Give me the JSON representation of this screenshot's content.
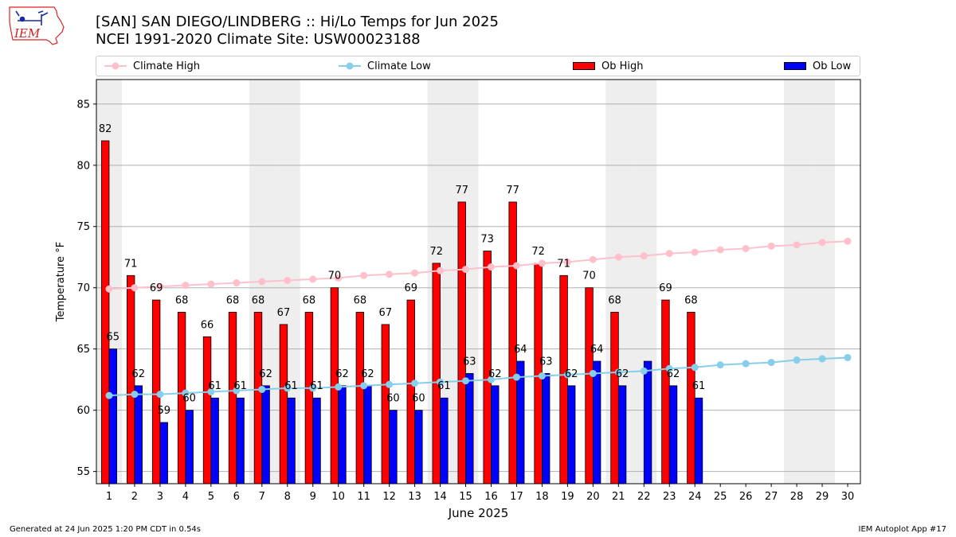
{
  "header": {
    "title_line1": "[SAN] SAN DIEGO/LINDBERG :: Hi/Lo Temps for Jun 2025",
    "title_line2": "NCEI 1991-2020 Climate Site: USW00023188",
    "logo_text": "IEM"
  },
  "legend": {
    "climate_high": "Climate High",
    "climate_low": "Climate Low",
    "ob_high": "Ob High",
    "ob_low": "Ob Low"
  },
  "footer": {
    "generated": "Generated at 24 Jun 2025 1:20 PM CDT in 0.54s",
    "app": "IEM Autoplot App #17"
  },
  "colors": {
    "ob_high": "#ff0000",
    "ob_low": "#0000ff",
    "climate_high": "#ffc0cb",
    "climate_low": "#87ceeb",
    "weekend_shade": "#eeeeee",
    "grid": "#b0b0b0"
  },
  "chart_data": {
    "type": "bar",
    "title": "[SAN] SAN DIEGO/LINDBERG :: Hi/Lo Temps for Jun 2025",
    "xlabel": "June 2025",
    "ylabel": "Temperature °F",
    "ylim": [
      54,
      87
    ],
    "xlim": [
      0.5,
      30.5
    ],
    "yticks": [
      55,
      60,
      65,
      70,
      75,
      80,
      85
    ],
    "y_grid": true,
    "legend_position": "top",
    "shaded_days": [
      1,
      7,
      8,
      14,
      15,
      21,
      22,
      28,
      29
    ],
    "categories": [
      1,
      2,
      3,
      4,
      5,
      6,
      7,
      8,
      9,
      10,
      11,
      12,
      13,
      14,
      15,
      16,
      17,
      18,
      19,
      20,
      21,
      22,
      23,
      24,
      25,
      26,
      27,
      28,
      29,
      30
    ],
    "series": [
      {
        "name": "Ob High",
        "type": "bar",
        "values": [
          82,
          71,
          69,
          68,
          66,
          68,
          68,
          67,
          68,
          70,
          68,
          67,
          69,
          72,
          77,
          73,
          77,
          72,
          71,
          70,
          68,
          null,
          69,
          68,
          null,
          null,
          null,
          null,
          null,
          null
        ],
        "labels": [
          82,
          71,
          69,
          68,
          66,
          68,
          68,
          67,
          68,
          70,
          68,
          67,
          69,
          72,
          77,
          73,
          77,
          72,
          71,
          70,
          68,
          null,
          69,
          68,
          null,
          null,
          null,
          null,
          null,
          null
        ]
      },
      {
        "name": "Ob Low",
        "type": "bar",
        "values": [
          65,
          62,
          59,
          60,
          61,
          61,
          62,
          61,
          61,
          62,
          62,
          60,
          60,
          61,
          63,
          62,
          64,
          63,
          62,
          64,
          62,
          64,
          62,
          61,
          null,
          null,
          null,
          null,
          null,
          null
        ],
        "labels": [
          65,
          62,
          59,
          60,
          61,
          61,
          62,
          61,
          61,
          62,
          62,
          60,
          60,
          61,
          63,
          62,
          64,
          63,
          62,
          64,
          62,
          null,
          62,
          61,
          null,
          null,
          null,
          null,
          null,
          null
        ]
      },
      {
        "name": "Climate High",
        "type": "line",
        "values": [
          69.9,
          70.0,
          70.1,
          70.2,
          70.3,
          70.4,
          70.5,
          70.6,
          70.7,
          70.8,
          71.0,
          71.1,
          71.2,
          71.4,
          71.5,
          71.7,
          71.8,
          72.0,
          72.1,
          72.3,
          72.5,
          72.6,
          72.8,
          72.9,
          73.1,
          73.2,
          73.4,
          73.5,
          73.7,
          73.8
        ]
      },
      {
        "name": "Climate Low",
        "type": "line",
        "values": [
          61.2,
          61.3,
          61.3,
          61.4,
          61.5,
          61.6,
          61.7,
          61.8,
          61.8,
          61.9,
          62.0,
          62.1,
          62.2,
          62.3,
          62.4,
          62.5,
          62.7,
          62.8,
          62.9,
          63.0,
          63.1,
          63.2,
          63.4,
          63.5,
          63.7,
          63.8,
          63.9,
          64.1,
          64.2,
          64.3
        ]
      }
    ]
  }
}
